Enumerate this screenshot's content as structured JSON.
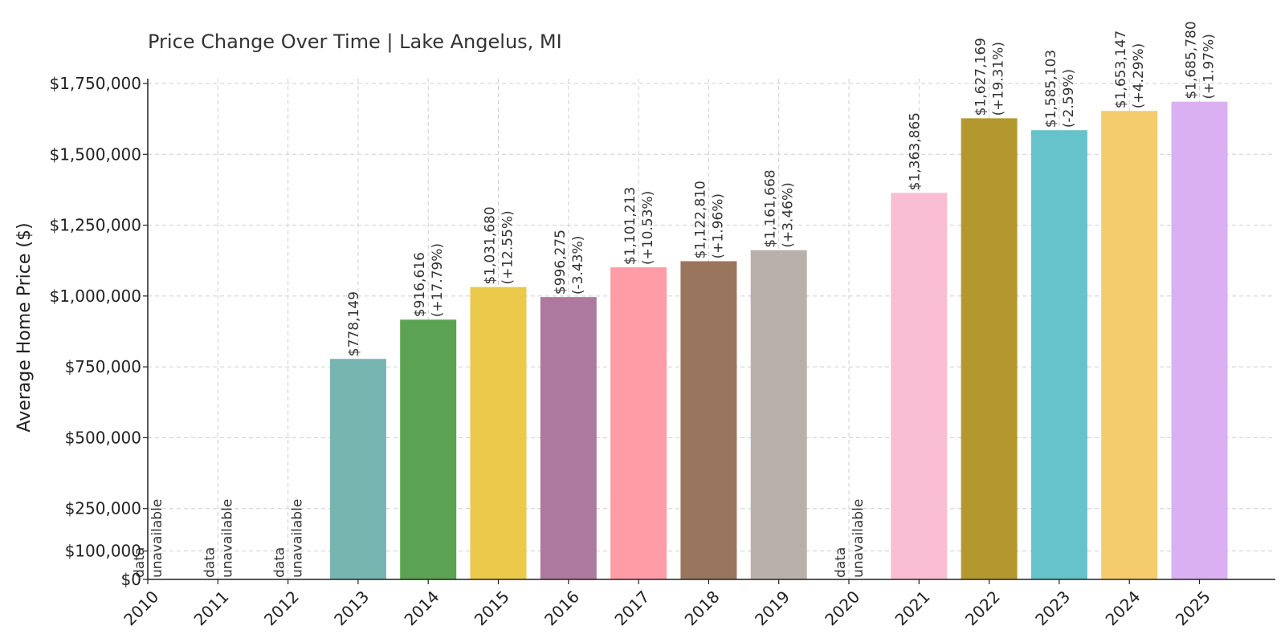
{
  "chart_data": {
    "type": "bar",
    "title": "Price Change Over Time | Lake Angelus, MI",
    "xlabel": "",
    "ylabel": "Average Home Price ($)",
    "ylim": [
      0,
      1760000
    ],
    "yticks": [
      0,
      100000,
      250000,
      500000,
      750000,
      1000000,
      1250000,
      1500000,
      1750000
    ],
    "ytick_labels": [
      "$0",
      "$100,000",
      "$250,000",
      "$500,000",
      "$750,000",
      "$1,000,000",
      "$1,250,000",
      "$1,500,000",
      "$1,750,000"
    ],
    "grid": true,
    "categories": [
      "2010",
      "2011",
      "2012",
      "2013",
      "2014",
      "2015",
      "2016",
      "2017",
      "2018",
      "2019",
      "2020",
      "2021",
      "2022",
      "2023",
      "2024",
      "2025"
    ],
    "values": [
      null,
      null,
      null,
      778149,
      916616,
      1031680,
      996275,
      1101213,
      1122810,
      1161668,
      null,
      1363865,
      1627169,
      1585103,
      1653147,
      1685780
    ],
    "labels": [
      [
        "data",
        "unavailable"
      ],
      [
        "data",
        "unavailable"
      ],
      [
        "data",
        "unavailable"
      ],
      [
        "$778,149"
      ],
      [
        "$916,616",
        "(+17.79%)"
      ],
      [
        "$1,031,680",
        "(+12.55%)"
      ],
      [
        "$996,275",
        "(-3.43%)"
      ],
      [
        "$1,101,213",
        "(+10.53%)"
      ],
      [
        "$1,122,810",
        "(+1.96%)"
      ],
      [
        "$1,161,668",
        "(+3.46%)"
      ],
      [
        "data",
        "unavailable"
      ],
      [
        "$1,363,865"
      ],
      [
        "$1,627,169",
        "(+19.31%)"
      ],
      [
        "$1,585,103",
        "(-2.59%)"
      ],
      [
        "$1,653,147",
        "(+4.29%)"
      ],
      [
        "$1,685,780",
        "(+1.97%)"
      ]
    ],
    "colors": [
      "#76b5b0",
      "#76b5b0",
      "#76b5b0",
      "#76b5b0",
      "#5ba352",
      "#ebc94b",
      "#ae799f",
      "#ff9ca6",
      "#9a755e",
      "#b9b0ab",
      "#b9b0ab",
      "#f9bed3",
      "#b3982f",
      "#66c2cb",
      "#f4cc6e",
      "#dab0f2"
    ]
  }
}
